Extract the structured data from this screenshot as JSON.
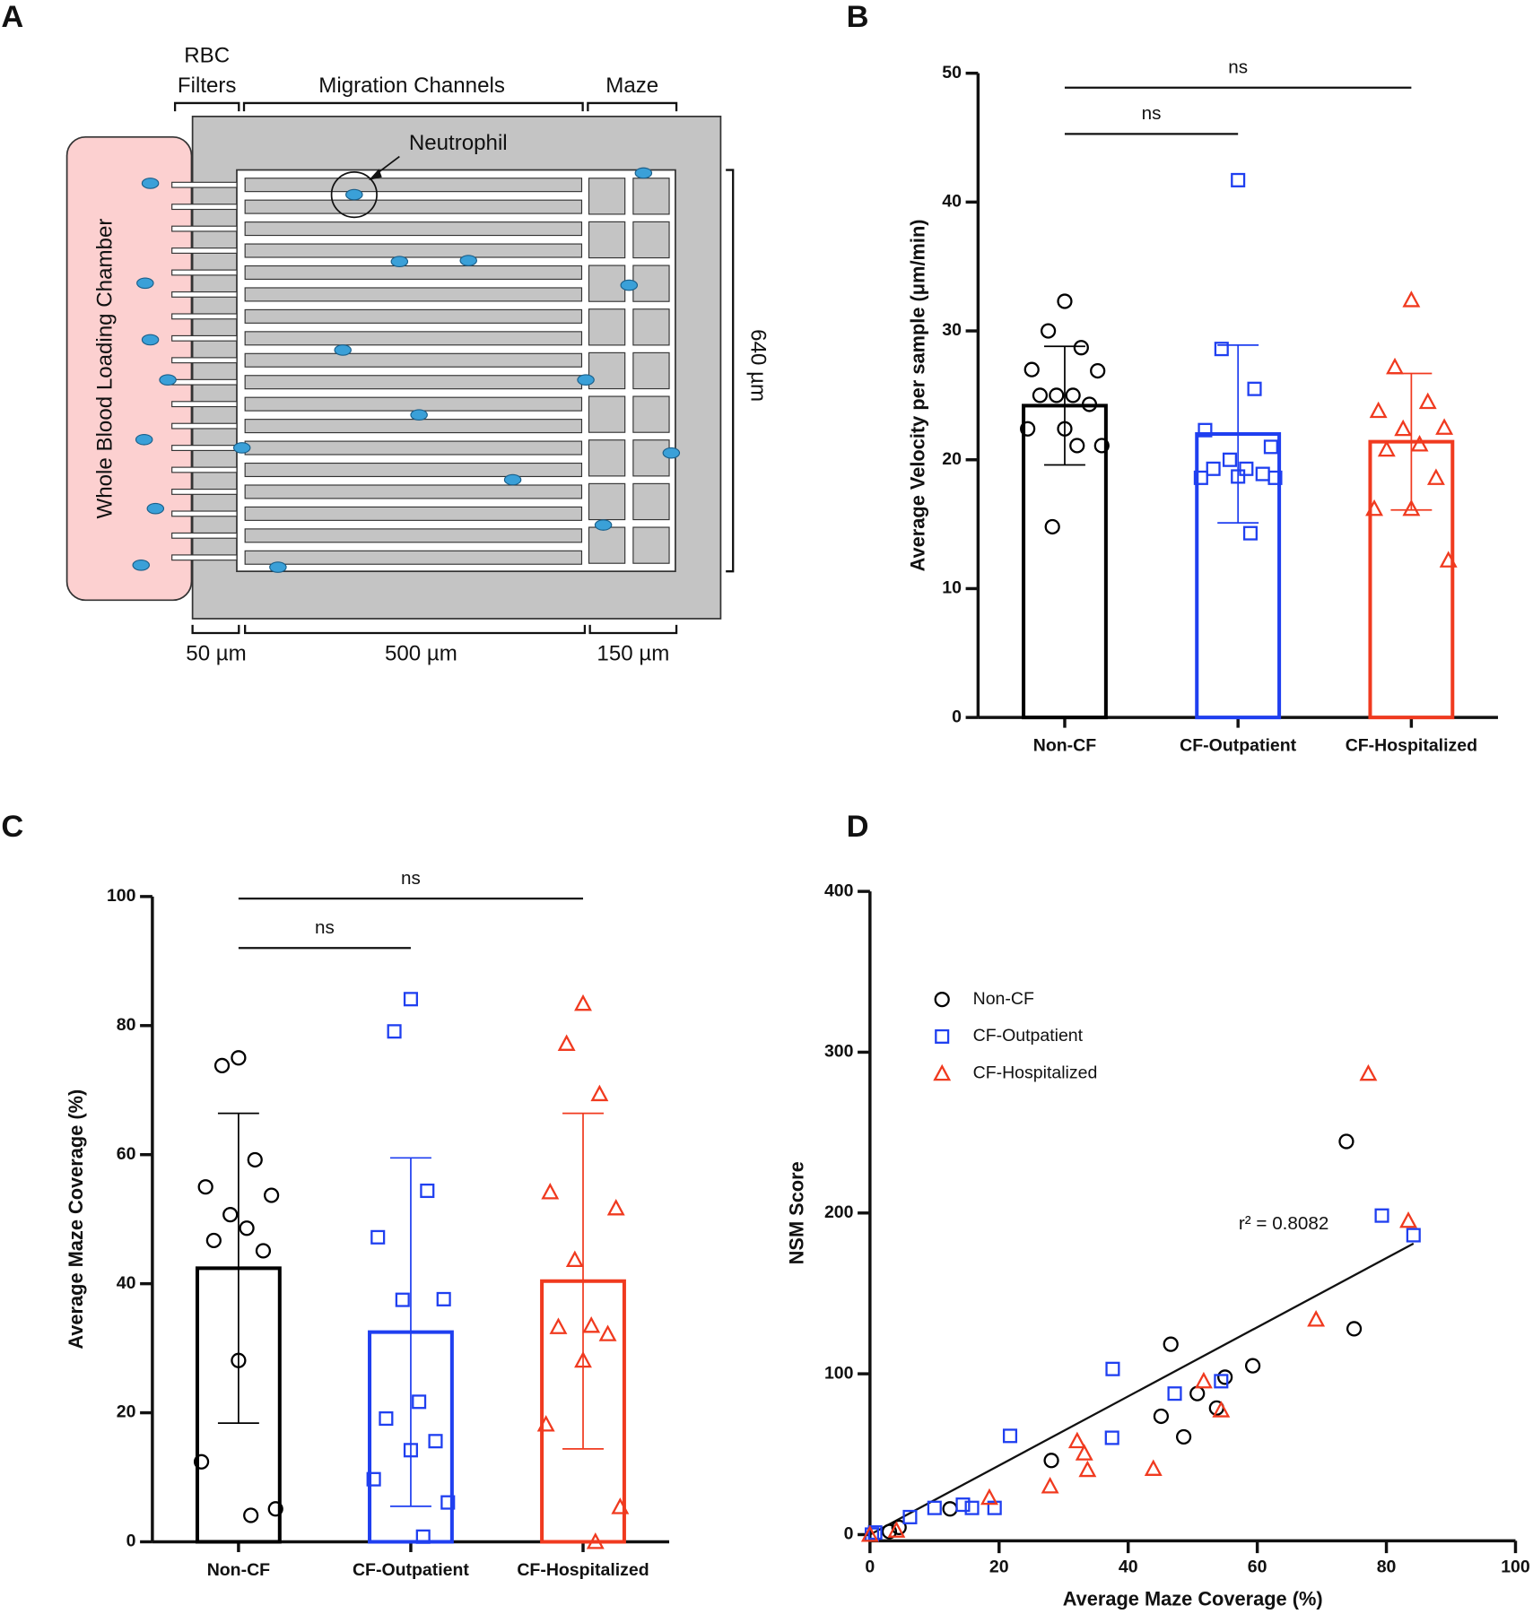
{
  "diagram": {
    "panel_label": "A",
    "filters_label": [
      "RBC",
      "Filters"
    ],
    "channels_label": "Migration Channels",
    "maze_label": "Maze",
    "cell_label": "Neutrophil",
    "chamber_label": "Whole Blood Loading Chamber",
    "height_label": "640 µm",
    "width_labels": [
      "50 µm",
      "500 µm",
      "150 µm"
    ]
  },
  "chart_data": [
    {
      "type": "bar",
      "panel_label": "B",
      "ylabel": "Average Velocity per sample (μm/min)",
      "categories": [
        "Non-CF",
        "CF-Outpatient",
        "CF-Hospitalized"
      ],
      "values": [
        24.2,
        22.0,
        21.4
      ],
      "errors": [
        4.6,
        6.9,
        5.3
      ],
      "colors": [
        "#000000",
        "#1f3ff0",
        "#f03a1f"
      ],
      "markers": [
        "circle",
        "square",
        "triangle"
      ],
      "points": [
        [
          32.3,
          30.0,
          28.7,
          27.0,
          26.9,
          25.0,
          25.0,
          25.0,
          24.3,
          22.4,
          22.4,
          21.1,
          21.1,
          14.8
        ],
        [
          41.7,
          28.6,
          25.5,
          22.3,
          21.0,
          20.0,
          19.3,
          19.3,
          18.9,
          18.7,
          18.6,
          18.6,
          14.3
        ],
        [
          32.4,
          27.2,
          24.5,
          23.8,
          22.5,
          22.4,
          21.2,
          20.8,
          18.6,
          16.2,
          16.2,
          12.2
        ]
      ],
      "annotations": [
        "ns",
        "ns"
      ],
      "ylim": [
        0,
        50
      ],
      "yticks": [
        0,
        10,
        20,
        30,
        40,
        50
      ]
    },
    {
      "type": "bar",
      "panel_label": "C",
      "ylabel": "Average Maze Coverage (%)",
      "categories": [
        "Non-CF",
        "CF-Outpatient",
        "CF-Hospitalized"
      ],
      "values": [
        42.4,
        32.5,
        40.4
      ],
      "errors": [
        24.0,
        27.0,
        26.0
      ],
      "colors": [
        "#000000",
        "#1f3ff0",
        "#f03a1f"
      ],
      "markers": [
        "circle",
        "square",
        "triangle"
      ],
      "points": [
        [
          75.0,
          73.8,
          59.2,
          55.0,
          53.7,
          50.7,
          48.6,
          46.7,
          45.1,
          28.1,
          12.4,
          5.1,
          4.1
        ],
        [
          84.1,
          79.1,
          54.4,
          47.2,
          37.6,
          37.5,
          21.7,
          19.1,
          15.6,
          14.2,
          9.7,
          6.1,
          0.8
        ],
        [
          83.4,
          77.2,
          69.4,
          54.2,
          51.7,
          43.7,
          33.5,
          33.3,
          32.2,
          28.1,
          18.2,
          5.4,
          0
        ]
      ],
      "annotations": [
        "ns",
        "ns"
      ],
      "ylim": [
        0,
        100
      ],
      "yticks": [
        0,
        20,
        40,
        60,
        80,
        100
      ]
    },
    {
      "type": "scatter",
      "panel_label": "D",
      "xlabel": "Average Maze Coverage (%)",
      "ylabel": "NSM Score",
      "series": [
        {
          "name": "Non-CF",
          "color": "#000000",
          "marker": "circle",
          "x": [
            73.8,
            75.0,
            46.6,
            59.3,
            55.0,
            50.7,
            53.7,
            45.1,
            48.6,
            28.1,
            12.4,
            4.5,
            3.0
          ],
          "y": [
            244.5,
            128.0,
            118.4,
            105.0,
            97.9,
            87.7,
            78.7,
            73.6,
            60.8,
            46.1,
            16.0,
            4.5,
            1.9
          ]
        },
        {
          "name": "CF-Outpatient",
          "color": "#1f3ff0",
          "marker": "square",
          "x": [
            79.3,
            84.2,
            37.6,
            54.4,
            47.2,
            21.7,
            37.5,
            19.3,
            15.8,
            14.4,
            10.0,
            6.2,
            0.8,
            0.3
          ],
          "y": [
            198.4,
            186.2,
            103.0,
            95.4,
            87.7,
            61.4,
            60.2,
            16.6,
            16.6,
            18.6,
            16.6,
            10.9,
            1.3,
            0
          ]
        },
        {
          "name": "CF-Hospitalized",
          "color": "#f03a1f",
          "marker": "triangle",
          "x": [
            77.2,
            83.4,
            69.1,
            51.7,
            54.4,
            32.1,
            33.2,
            33.7,
            43.9,
            27.9,
            18.5,
            4.1,
            0
          ],
          "y": [
            286.7,
            195.2,
            133.8,
            95.4,
            77.4,
            58.2,
            50.6,
            40.3,
            41.0,
            30.1,
            23.0,
            2.6,
            0
          ]
        }
      ],
      "fit": {
        "x": [
          0,
          84.2
        ],
        "y": [
          0,
          181
        ]
      },
      "annotation": "r² = 0.8082",
      "legend": "upper left",
      "xlim": [
        0,
        100
      ],
      "xticks": [
        0,
        20,
        40,
        60,
        80,
        100
      ],
      "ylim": [
        0,
        400
      ],
      "yticks": [
        0,
        100,
        200,
        300,
        400
      ]
    }
  ]
}
